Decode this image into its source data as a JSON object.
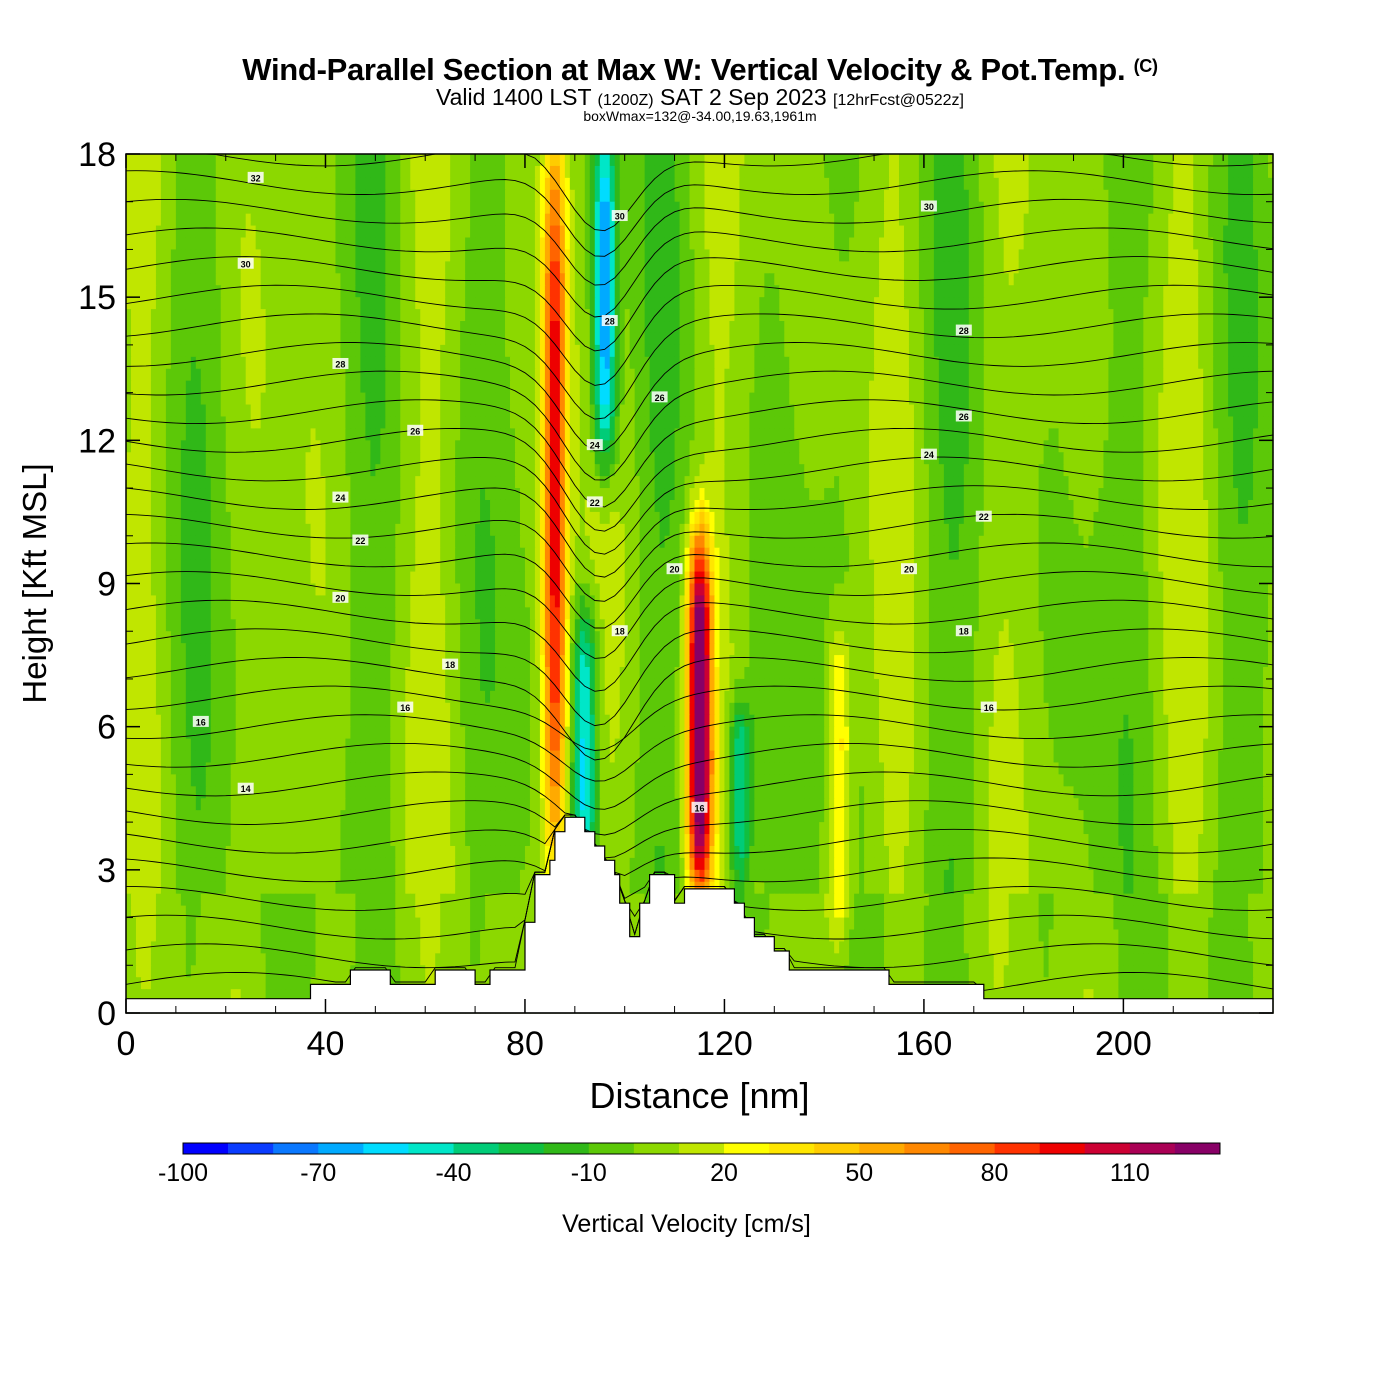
{
  "header": {
    "title": "Wind-Parallel Section at Max W: Vertical Velocity & Pot.Temp.",
    "copyright": "(C)",
    "valid_prefix": "Valid 1400 LST",
    "valid_utc": "(1200Z)",
    "valid_date": "SAT 2 Sep 2023",
    "forecast": "[12hrFcst@0522z]",
    "box_wmax": "boxWmax=132@-34.00,19.63,1961m"
  },
  "chart_data": {
    "type": "heatmap",
    "title": "Wind-Parallel Section at Max W: Vertical Velocity & Pot.Temp.",
    "xlabel": "Distance [nm]",
    "ylabel": "Height [Kft MSL]",
    "xlim": [
      0,
      230
    ],
    "ylim": [
      0,
      18
    ],
    "x_ticks": [
      0,
      40,
      80,
      120,
      160,
      200
    ],
    "y_ticks": [
      0,
      3,
      6,
      9,
      12,
      15,
      18
    ],
    "colorbar": {
      "label": "Vertical Velocity [cm/s]",
      "tick_values": [
        -100,
        -70,
        -40,
        -10,
        20,
        50,
        80,
        110
      ],
      "tick_labels": [
        "-100",
        "-70",
        "-40",
        "-10",
        "20",
        "50",
        "80",
        "110"
      ],
      "levels": [
        -100,
        -90,
        -80,
        -70,
        -60,
        -50,
        -40,
        -30,
        -20,
        -10,
        0,
        10,
        20,
        30,
        40,
        50,
        60,
        70,
        80,
        90,
        100,
        110,
        120
      ],
      "colors": [
        "#0000ff",
        "#0a3cff",
        "#0a78ff",
        "#00aaff",
        "#00dcff",
        "#00e6c8",
        "#00cc78",
        "#10bf40",
        "#30b818",
        "#5cc808",
        "#8cd800",
        "#c0e600",
        "#ffff00",
        "#ffe600",
        "#ffcc00",
        "#ffaa00",
        "#ff8800",
        "#ff6400",
        "#ff3200",
        "#ee0000",
        "#cc0033",
        "#aa0055",
        "#880066"
      ]
    },
    "vertical_velocity_features": [
      {
        "x": 86,
        "y_min": 3.5,
        "y_max": 18,
        "w": 95,
        "note": "updraft column"
      },
      {
        "x": 96,
        "y_min": 12,
        "y_max": 18,
        "w": -75
      },
      {
        "x": 115,
        "y_min": 3,
        "y_max": 9.5,
        "w": 132,
        "note": "max W"
      },
      {
        "x": 123,
        "y_min": 3,
        "y_max": 6,
        "w": -45
      },
      {
        "x": 143,
        "y_min": 2,
        "y_max": 7.5,
        "w": 40
      },
      {
        "x": 92,
        "y_min": 3,
        "y_max": 8,
        "w": -55
      }
    ],
    "terrain_nm_kft": [
      [
        0,
        0.3
      ],
      [
        37,
        0.3
      ],
      [
        37,
        0.6
      ],
      [
        45,
        0.6
      ],
      [
        45,
        0.9
      ],
      [
        53,
        0.9
      ],
      [
        53,
        0.6
      ],
      [
        62,
        0.6
      ],
      [
        62,
        0.9
      ],
      [
        70,
        0.9
      ],
      [
        70,
        0.6
      ],
      [
        73,
        0.6
      ],
      [
        73,
        0.9
      ],
      [
        80,
        0.9
      ],
      [
        80,
        1.9
      ],
      [
        82,
        1.9
      ],
      [
        82,
        2.9
      ],
      [
        85,
        2.9
      ],
      [
        85,
        3.2
      ],
      [
        86,
        3.2
      ],
      [
        86,
        3.8
      ],
      [
        88,
        3.8
      ],
      [
        88,
        4.1
      ],
      [
        92,
        4.1
      ],
      [
        92,
        3.8
      ],
      [
        94,
        3.8
      ],
      [
        94,
        3.5
      ],
      [
        96,
        3.5
      ],
      [
        96,
        3.2
      ],
      [
        98,
        3.2
      ],
      [
        98,
        2.9
      ],
      [
        99,
        2.9
      ],
      [
        99,
        2.3
      ],
      [
        101,
        2.3
      ],
      [
        101,
        1.6
      ],
      [
        103,
        1.6
      ],
      [
        103,
        2.3
      ],
      [
        105,
        2.3
      ],
      [
        105,
        2.9
      ],
      [
        110,
        2.9
      ],
      [
        110,
        2.3
      ],
      [
        112,
        2.3
      ],
      [
        112,
        2.6
      ],
      [
        122,
        2.6
      ],
      [
        122,
        2.3
      ],
      [
        124,
        2.3
      ],
      [
        124,
        2.0
      ],
      [
        126,
        2.0
      ],
      [
        126,
        1.6
      ],
      [
        130,
        1.6
      ],
      [
        130,
        1.3
      ],
      [
        133,
        1.3
      ],
      [
        133,
        0.9
      ],
      [
        153,
        0.9
      ],
      [
        153,
        0.6
      ],
      [
        172,
        0.6
      ],
      [
        172,
        0.3
      ],
      [
        230,
        0.3
      ]
    ],
    "theta_contour_labels": [
      {
        "text": "32",
        "x": 26,
        "y": 17.5
      },
      {
        "text": "30",
        "x": 24,
        "y": 15.7
      },
      {
        "text": "28",
        "x": 43,
        "y": 13.6
      },
      {
        "text": "26",
        "x": 58,
        "y": 12.2
      },
      {
        "text": "24",
        "x": 43,
        "y": 10.8
      },
      {
        "text": "22",
        "x": 47,
        "y": 9.9
      },
      {
        "text": "20",
        "x": 43,
        "y": 8.7
      },
      {
        "text": "18",
        "x": 65,
        "y": 7.3
      },
      {
        "text": "16",
        "x": 56,
        "y": 6.4
      },
      {
        "text": "16",
        "x": 15,
        "y": 6.1
      },
      {
        "text": "14",
        "x": 24,
        "y": 4.7
      },
      {
        "text": "30",
        "x": 99,
        "y": 16.7
      },
      {
        "text": "28",
        "x": 97,
        "y": 14.5
      },
      {
        "text": "26",
        "x": 107,
        "y": 12.9
      },
      {
        "text": "24",
        "x": 94,
        "y": 11.9
      },
      {
        "text": "22",
        "x": 94,
        "y": 10.7
      },
      {
        "text": "20",
        "x": 110,
        "y": 9.3
      },
      {
        "text": "18",
        "x": 99,
        "y": 8.0
      },
      {
        "text": "16",
        "x": 115,
        "y": 4.3
      },
      {
        "text": "30",
        "x": 161,
        "y": 16.9
      },
      {
        "text": "28",
        "x": 168,
        "y": 14.3
      },
      {
        "text": "26",
        "x": 168,
        "y": 12.5
      },
      {
        "text": "24",
        "x": 161,
        "y": 11.7
      },
      {
        "text": "22",
        "x": 172,
        "y": 10.4
      },
      {
        "text": "20",
        "x": 157,
        "y": 9.3
      },
      {
        "text": "18",
        "x": 168,
        "y": 8.0
      },
      {
        "text": "16",
        "x": 173,
        "y": 6.4
      }
    ]
  }
}
